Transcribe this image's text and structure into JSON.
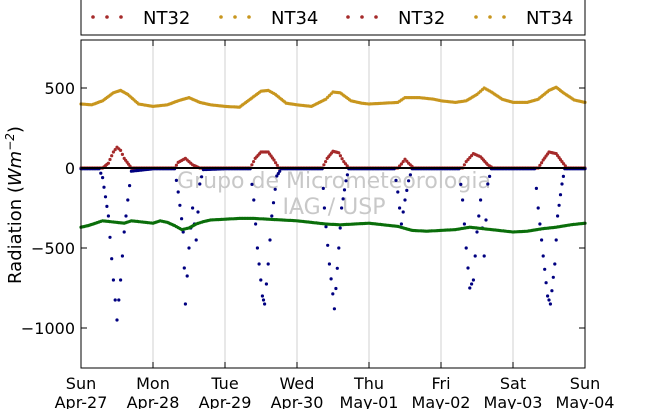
{
  "chart_data": {
    "type": "scatter",
    "title": "",
    "ylabel_text": "Radiation (",
    "ylabel_unit": "Wm",
    "ylabel_exp": "−2",
    "ylabel_close": ")",
    "xlabel": "",
    "ylim": [
      -1250,
      800
    ],
    "xlim": [
      0,
      7
    ],
    "yticks": [
      {
        "value": 500,
        "label": "500"
      },
      {
        "value": 0,
        "label": "0"
      },
      {
        "value": -500,
        "label": "−500"
      },
      {
        "value": -1000,
        "label": "−1000"
      }
    ],
    "xticks": [
      {
        "value": 0,
        "day": "Sun",
        "date": "Apr-27"
      },
      {
        "value": 1,
        "day": "Mon",
        "date": "Apr-28"
      },
      {
        "value": 2,
        "day": "Tue",
        "date": "Apr-29"
      },
      {
        "value": 3,
        "day": "Wed",
        "date": "Apr-30"
      },
      {
        "value": 4,
        "day": "Thu",
        "date": "May-01"
      },
      {
        "value": 5,
        "day": "Fri",
        "date": "May-02"
      },
      {
        "value": 6,
        "day": "Sat",
        "date": "May-03"
      },
      {
        "value": 7,
        "day": "Sun",
        "date": "May-04"
      }
    ],
    "grid": "vertical",
    "legend": {
      "placement": "top",
      "entries": [
        {
          "name": "NT32",
          "color": "#a52a2a"
        },
        {
          "name": "NT34",
          "color": "#c8961e"
        },
        {
          "name": "NT32",
          "color": "#a52a2a"
        },
        {
          "name": "NT34",
          "color": "#c8961e"
        }
      ]
    },
    "watermark": [
      "Grupo de Micrometeorologia",
      "IAG / USP"
    ],
    "series": [
      {
        "color": "#c8961e",
        "points": [
          [
            0.0,
            400
          ],
          [
            0.15,
            395
          ],
          [
            0.3,
            420
          ],
          [
            0.45,
            470
          ],
          [
            0.55,
            485
          ],
          [
            0.65,
            460
          ],
          [
            0.8,
            400
          ],
          [
            1.0,
            385
          ],
          [
            1.2,
            395
          ],
          [
            1.35,
            420
          ],
          [
            1.5,
            440
          ],
          [
            1.65,
            410
          ],
          [
            1.8,
            395
          ],
          [
            2.0,
            385
          ],
          [
            2.2,
            380
          ],
          [
            2.35,
            430
          ],
          [
            2.5,
            480
          ],
          [
            2.6,
            485
          ],
          [
            2.7,
            460
          ],
          [
            2.85,
            405
          ],
          [
            3.0,
            395
          ],
          [
            3.2,
            385
          ],
          [
            3.4,
            430
          ],
          [
            3.5,
            475
          ],
          [
            3.6,
            470
          ],
          [
            3.75,
            420
          ],
          [
            3.9,
            405
          ],
          [
            4.0,
            400
          ],
          [
            4.2,
            405
          ],
          [
            4.4,
            410
          ],
          [
            4.5,
            440
          ],
          [
            4.7,
            440
          ],
          [
            4.9,
            430
          ],
          [
            5.0,
            420
          ],
          [
            5.2,
            410
          ],
          [
            5.35,
            420
          ],
          [
            5.5,
            460
          ],
          [
            5.6,
            500
          ],
          [
            5.7,
            475
          ],
          [
            5.85,
            430
          ],
          [
            6.0,
            410
          ],
          [
            6.2,
            410
          ],
          [
            6.35,
            430
          ],
          [
            6.5,
            485
          ],
          [
            6.6,
            505
          ],
          [
            6.7,
            470
          ],
          [
            6.85,
            425
          ],
          [
            7.0,
            410
          ]
        ]
      },
      {
        "color": "#a52a2a",
        "points": [
          [
            0.0,
            0
          ],
          [
            0.3,
            0
          ],
          [
            0.38,
            30
          ],
          [
            0.45,
            100
          ],
          [
            0.5,
            130
          ],
          [
            0.55,
            110
          ],
          [
            0.6,
            60
          ],
          [
            0.7,
            0
          ],
          [
            1.0,
            0
          ],
          [
            1.3,
            0
          ],
          [
            1.35,
            35
          ],
          [
            1.45,
            60
          ],
          [
            1.5,
            40
          ],
          [
            1.55,
            20
          ],
          [
            1.65,
            0
          ],
          [
            2.0,
            0
          ],
          [
            2.35,
            0
          ],
          [
            2.42,
            60
          ],
          [
            2.5,
            100
          ],
          [
            2.6,
            100
          ],
          [
            2.68,
            50
          ],
          [
            2.75,
            0
          ],
          [
            3.0,
            0
          ],
          [
            3.35,
            0
          ],
          [
            3.42,
            60
          ],
          [
            3.5,
            105
          ],
          [
            3.58,
            95
          ],
          [
            3.65,
            40
          ],
          [
            3.72,
            0
          ],
          [
            4.0,
            0
          ],
          [
            4.4,
            0
          ],
          [
            4.45,
            25
          ],
          [
            4.5,
            55
          ],
          [
            4.55,
            30
          ],
          [
            4.62,
            0
          ],
          [
            5.0,
            0
          ],
          [
            5.3,
            0
          ],
          [
            5.35,
            40
          ],
          [
            5.45,
            90
          ],
          [
            5.55,
            70
          ],
          [
            5.65,
            20
          ],
          [
            5.72,
            0
          ],
          [
            6.0,
            0
          ],
          [
            6.35,
            0
          ],
          [
            6.42,
            50
          ],
          [
            6.5,
            100
          ],
          [
            6.6,
            90
          ],
          [
            6.68,
            40
          ],
          [
            6.75,
            0
          ],
          [
            7.0,
            0
          ]
        ]
      },
      {
        "color": "#000080",
        "points": [
          [
            0.0,
            -5
          ],
          [
            0.25,
            -5
          ],
          [
            0.3,
            -60
          ],
          [
            0.38,
            -300
          ],
          [
            0.45,
            -700
          ],
          [
            0.5,
            -950
          ],
          [
            0.55,
            -700
          ],
          [
            0.6,
            -400
          ],
          [
            0.65,
            -200
          ],
          [
            0.7,
            -20
          ],
          [
            1.0,
            -5
          ],
          [
            1.3,
            -5
          ],
          [
            1.35,
            -150
          ],
          [
            1.42,
            -400
          ],
          [
            1.45,
            -850
          ],
          [
            1.5,
            -500
          ],
          [
            1.55,
            -250
          ],
          [
            1.6,
            -450
          ],
          [
            1.65,
            -100
          ],
          [
            1.7,
            -10
          ],
          [
            2.0,
            -5
          ],
          [
            2.35,
            -5
          ],
          [
            2.4,
            -200
          ],
          [
            2.45,
            -500
          ],
          [
            2.52,
            -800
          ],
          [
            2.55,
            -850
          ],
          [
            2.6,
            -600
          ],
          [
            2.65,
            -300
          ],
          [
            2.72,
            -50
          ],
          [
            2.78,
            -5
          ],
          [
            3.0,
            -5
          ],
          [
            3.35,
            -5
          ],
          [
            3.38,
            -250
          ],
          [
            3.45,
            -600
          ],
          [
            3.52,
            -880
          ],
          [
            3.58,
            -500
          ],
          [
            3.62,
            -250
          ],
          [
            3.68,
            -80
          ],
          [
            3.72,
            -5
          ],
          [
            4.0,
            -5
          ],
          [
            4.35,
            -5
          ],
          [
            4.4,
            -150
          ],
          [
            4.45,
            -350
          ],
          [
            4.5,
            -200
          ],
          [
            4.55,
            -80
          ],
          [
            4.6,
            -5
          ],
          [
            5.0,
            -5
          ],
          [
            5.25,
            -5
          ],
          [
            5.3,
            -200
          ],
          [
            5.35,
            -500
          ],
          [
            5.4,
            -750
          ],
          [
            5.45,
            -700
          ],
          [
            5.5,
            -400
          ],
          [
            5.55,
            -200
          ],
          [
            5.6,
            -550
          ],
          [
            5.65,
            -100
          ],
          [
            5.7,
            -5
          ],
          [
            6.0,
            -5
          ],
          [
            6.3,
            -5
          ],
          [
            6.35,
            -250
          ],
          [
            6.42,
            -550
          ],
          [
            6.48,
            -800
          ],
          [
            6.52,
            -850
          ],
          [
            6.58,
            -600
          ],
          [
            6.62,
            -300
          ],
          [
            6.68,
            -100
          ],
          [
            6.72,
            -5
          ],
          [
            7.0,
            -5
          ]
        ]
      },
      {
        "color": "#0a6e0a",
        "points": [
          [
            0.0,
            -370
          ],
          [
            0.1,
            -360
          ],
          [
            0.2,
            -345
          ],
          [
            0.3,
            -330
          ],
          [
            0.4,
            -335
          ],
          [
            0.5,
            -340
          ],
          [
            0.6,
            -345
          ],
          [
            0.7,
            -330
          ],
          [
            0.8,
            -335
          ],
          [
            0.9,
            -340
          ],
          [
            1.0,
            -345
          ],
          [
            1.1,
            -330
          ],
          [
            1.2,
            -340
          ],
          [
            1.3,
            -360
          ],
          [
            1.4,
            -385
          ],
          [
            1.5,
            -375
          ],
          [
            1.6,
            -350
          ],
          [
            1.7,
            -335
          ],
          [
            1.8,
            -325
          ],
          [
            2.0,
            -320
          ],
          [
            2.2,
            -315
          ],
          [
            2.4,
            -315
          ],
          [
            2.6,
            -320
          ],
          [
            2.8,
            -325
          ],
          [
            3.0,
            -330
          ],
          [
            3.2,
            -340
          ],
          [
            3.4,
            -350
          ],
          [
            3.6,
            -355
          ],
          [
            3.8,
            -350
          ],
          [
            4.0,
            -345
          ],
          [
            4.2,
            -355
          ],
          [
            4.4,
            -365
          ],
          [
            4.6,
            -390
          ],
          [
            4.8,
            -395
          ],
          [
            5.0,
            -390
          ],
          [
            5.2,
            -385
          ],
          [
            5.4,
            -370
          ],
          [
            5.6,
            -380
          ],
          [
            5.8,
            -390
          ],
          [
            6.0,
            -400
          ],
          [
            6.2,
            -395
          ],
          [
            6.4,
            -380
          ],
          [
            6.6,
            -370
          ],
          [
            6.8,
            -355
          ],
          [
            7.0,
            -345
          ]
        ]
      }
    ]
  }
}
